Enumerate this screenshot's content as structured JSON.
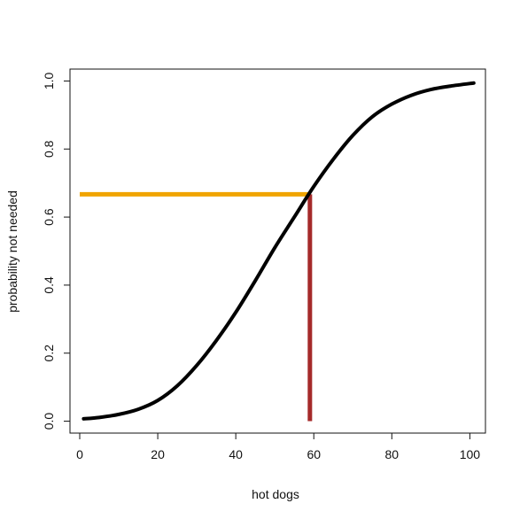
{
  "chart_data": {
    "type": "line",
    "title": "",
    "xlabel": "hot dogs",
    "ylabel": "probability not needed",
    "xlim": [
      -2.5,
      104
    ],
    "ylim": [
      -0.035,
      1.035
    ],
    "xticks": [
      0,
      20,
      40,
      60,
      80,
      100
    ],
    "yticks": [
      0.0,
      0.2,
      0.4,
      0.6,
      0.8,
      1.0
    ],
    "xtick_labels": [
      "0",
      "20",
      "40",
      "60",
      "80",
      "100"
    ],
    "ytick_labels": [
      "0.0",
      "0.2",
      "0.4",
      "0.6",
      "0.8",
      "1.0"
    ],
    "grid": false,
    "legend": "none",
    "series": [
      {
        "color": "#000000",
        "x": [
          1,
          5,
          10,
          15,
          20,
          25,
          30,
          35,
          40,
          45,
          50,
          55,
          60,
          65,
          70,
          75,
          80,
          85,
          90,
          95,
          101
        ],
        "y": [
          0.007,
          0.011,
          0.02,
          0.035,
          0.061,
          0.104,
          0.164,
          0.237,
          0.32,
          0.413,
          0.51,
          0.6,
          0.69,
          0.77,
          0.84,
          0.895,
          0.932,
          0.958,
          0.975,
          0.985,
          0.994
        ]
      }
    ],
    "reference_lines": [
      {
        "color": "#f0a400",
        "orientation": "horizontal",
        "x": [
          0,
          59
        ],
        "y": [
          0.667,
          0.667
        ]
      },
      {
        "color": "#a52a2a",
        "orientation": "vertical",
        "x": [
          59,
          59
        ],
        "y": [
          0.0,
          0.667
        ]
      }
    ]
  }
}
